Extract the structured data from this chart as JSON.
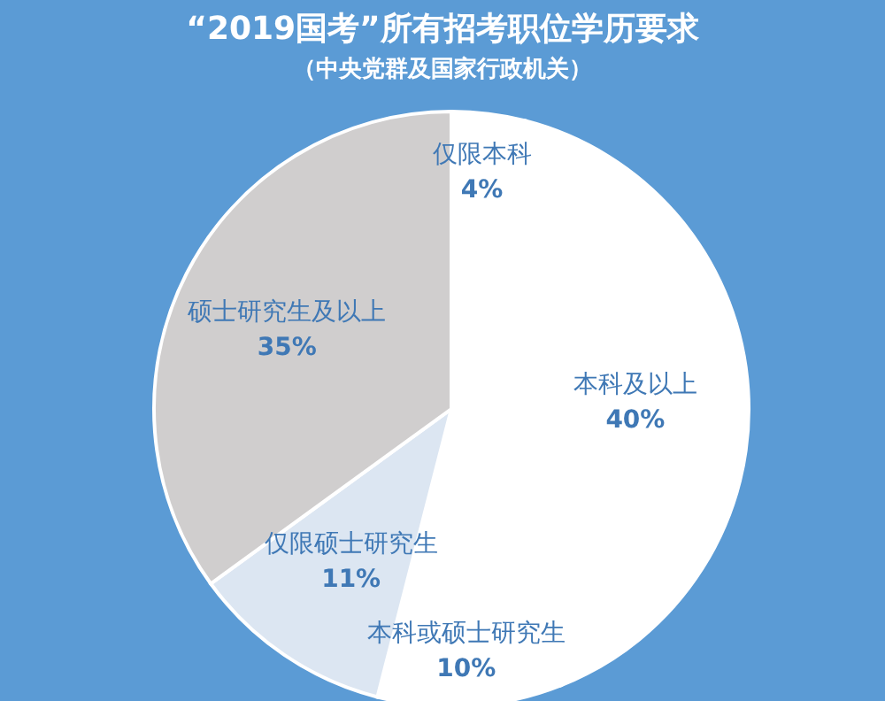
{
  "chart_data": {
    "type": "pie",
    "title": "“2019国考”所有招考职位学历要求",
    "subtitle": "（中央党群及国家行政机关）",
    "categories": [
      "仅限本科",
      "本科及以上",
      "本科或硕士研究生",
      "仅限硕士研究生",
      "硕士研究生及以上"
    ],
    "values": [
      4,
      40,
      10,
      11,
      35
    ],
    "value_labels": [
      "4%",
      "40%",
      "10%",
      "11%",
      "35%"
    ],
    "colors": [
      "#ffffff",
      "#ffffff",
      "#ffffff",
      "#dce6f2",
      "#d0cece"
    ]
  }
}
